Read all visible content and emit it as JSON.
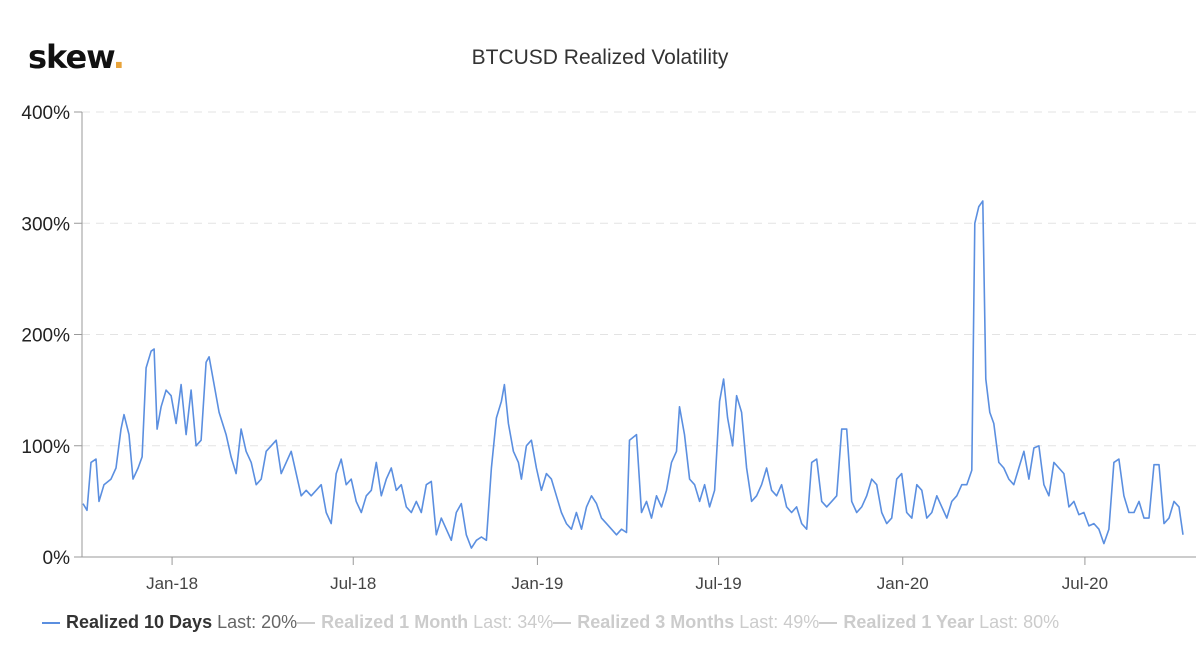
{
  "logo": {
    "text": "skew",
    "dot": "."
  },
  "chart_data": {
    "type": "line",
    "title": "BTCUSD Realized Volatility",
    "xlabel": "",
    "ylabel": "",
    "ylim": [
      0,
      400
    ],
    "xlim": [
      "2017-10-03",
      "2020-10-10"
    ],
    "y_ticks": [
      {
        "value": 0,
        "label": "0%"
      },
      {
        "value": 100,
        "label": "100%"
      },
      {
        "value": 200,
        "label": "200%"
      },
      {
        "value": 300,
        "label": "300%"
      },
      {
        "value": 400,
        "label": "400%"
      }
    ],
    "x_ticks": [
      {
        "date": "2018-01-01",
        "label": "Jan-18"
      },
      {
        "date": "2018-07-01",
        "label": "Jul-18"
      },
      {
        "date": "2019-01-01",
        "label": "Jan-19"
      },
      {
        "date": "2019-07-01",
        "label": "Jul-19"
      },
      {
        "date": "2020-01-01",
        "label": "Jan-20"
      },
      {
        "date": "2020-07-01",
        "label": "Jul-20"
      }
    ],
    "grid": "horizontal dashed",
    "legend_position": "bottom",
    "series": [
      {
        "name": "Realized 10 Days",
        "last": "Last: 20%",
        "color": "#5b8fe0",
        "visible": true,
        "points": [
          [
            "2017-10-04",
            48
          ],
          [
            "2017-10-08",
            42
          ],
          [
            "2017-10-12",
            85
          ],
          [
            "2017-10-17",
            88
          ],
          [
            "2017-10-20",
            50
          ],
          [
            "2017-10-25",
            65
          ],
          [
            "2017-11-01",
            70
          ],
          [
            "2017-11-06",
            80
          ],
          [
            "2017-11-11",
            115
          ],
          [
            "2017-11-14",
            128
          ],
          [
            "2017-11-19",
            110
          ],
          [
            "2017-11-23",
            70
          ],
          [
            "2017-11-28",
            80
          ],
          [
            "2017-12-02",
            90
          ],
          [
            "2017-12-06",
            170
          ],
          [
            "2017-12-11",
            185
          ],
          [
            "2017-12-14",
            187
          ],
          [
            "2017-12-17",
            115
          ],
          [
            "2017-12-21",
            135
          ],
          [
            "2017-12-26",
            150
          ],
          [
            "2017-12-31",
            145
          ],
          [
            "2018-01-05",
            120
          ],
          [
            "2018-01-10",
            155
          ],
          [
            "2018-01-15",
            110
          ],
          [
            "2018-01-20",
            150
          ],
          [
            "2018-01-25",
            100
          ],
          [
            "2018-01-30",
            105
          ],
          [
            "2018-02-04",
            175
          ],
          [
            "2018-02-07",
            180
          ],
          [
            "2018-02-11",
            160
          ],
          [
            "2018-02-17",
            130
          ],
          [
            "2018-02-24",
            110
          ],
          [
            "2018-03-01",
            90
          ],
          [
            "2018-03-06",
            75
          ],
          [
            "2018-03-11",
            115
          ],
          [
            "2018-03-16",
            95
          ],
          [
            "2018-03-21",
            85
          ],
          [
            "2018-03-26",
            65
          ],
          [
            "2018-03-31",
            70
          ],
          [
            "2018-04-05",
            95
          ],
          [
            "2018-04-10",
            100
          ],
          [
            "2018-04-15",
            105
          ],
          [
            "2018-04-20",
            75
          ],
          [
            "2018-04-25",
            85
          ],
          [
            "2018-04-30",
            95
          ],
          [
            "2018-05-05",
            75
          ],
          [
            "2018-05-10",
            55
          ],
          [
            "2018-05-15",
            60
          ],
          [
            "2018-05-20",
            55
          ],
          [
            "2018-05-25",
            60
          ],
          [
            "2018-05-30",
            65
          ],
          [
            "2018-06-04",
            40
          ],
          [
            "2018-06-09",
            30
          ],
          [
            "2018-06-14",
            75
          ],
          [
            "2018-06-19",
            88
          ],
          [
            "2018-06-24",
            65
          ],
          [
            "2018-06-29",
            70
          ],
          [
            "2018-07-04",
            50
          ],
          [
            "2018-07-09",
            40
          ],
          [
            "2018-07-14",
            55
          ],
          [
            "2018-07-19",
            60
          ],
          [
            "2018-07-24",
            85
          ],
          [
            "2018-07-29",
            55
          ],
          [
            "2018-08-03",
            70
          ],
          [
            "2018-08-08",
            80
          ],
          [
            "2018-08-13",
            60
          ],
          [
            "2018-08-18",
            65
          ],
          [
            "2018-08-23",
            45
          ],
          [
            "2018-08-28",
            40
          ],
          [
            "2018-09-02",
            50
          ],
          [
            "2018-09-07",
            40
          ],
          [
            "2018-09-12",
            65
          ],
          [
            "2018-09-17",
            68
          ],
          [
            "2018-09-22",
            20
          ],
          [
            "2018-09-27",
            35
          ],
          [
            "2018-10-02",
            25
          ],
          [
            "2018-10-07",
            15
          ],
          [
            "2018-10-12",
            40
          ],
          [
            "2018-10-17",
            48
          ],
          [
            "2018-10-22",
            20
          ],
          [
            "2018-10-27",
            8
          ],
          [
            "2018-11-01",
            15
          ],
          [
            "2018-11-06",
            18
          ],
          [
            "2018-11-11",
            15
          ],
          [
            "2018-11-16",
            80
          ],
          [
            "2018-11-21",
            125
          ],
          [
            "2018-11-26",
            140
          ],
          [
            "2018-11-29",
            155
          ],
          [
            "2018-12-03",
            120
          ],
          [
            "2018-12-08",
            95
          ],
          [
            "2018-12-13",
            85
          ],
          [
            "2018-12-16",
            70
          ],
          [
            "2018-12-21",
            100
          ],
          [
            "2018-12-26",
            105
          ],
          [
            "2018-12-31",
            80
          ],
          [
            "2019-01-05",
            60
          ],
          [
            "2019-01-10",
            75
          ],
          [
            "2019-01-15",
            70
          ],
          [
            "2019-01-20",
            55
          ],
          [
            "2019-01-25",
            40
          ],
          [
            "2019-01-30",
            30
          ],
          [
            "2019-02-04",
            25
          ],
          [
            "2019-02-09",
            40
          ],
          [
            "2019-02-14",
            25
          ],
          [
            "2019-02-19",
            45
          ],
          [
            "2019-02-24",
            55
          ],
          [
            "2019-03-01",
            48
          ],
          [
            "2019-03-06",
            35
          ],
          [
            "2019-03-11",
            30
          ],
          [
            "2019-03-16",
            25
          ],
          [
            "2019-03-21",
            20
          ],
          [
            "2019-03-26",
            25
          ],
          [
            "2019-03-31",
            22
          ],
          [
            "2019-04-03",
            105
          ],
          [
            "2019-04-10",
            110
          ],
          [
            "2019-04-15",
            40
          ],
          [
            "2019-04-20",
            50
          ],
          [
            "2019-04-25",
            35
          ],
          [
            "2019-04-30",
            55
          ],
          [
            "2019-05-05",
            45
          ],
          [
            "2019-05-10",
            60
          ],
          [
            "2019-05-15",
            85
          ],
          [
            "2019-05-20",
            95
          ],
          [
            "2019-05-23",
            135
          ],
          [
            "2019-05-28",
            110
          ],
          [
            "2019-06-02",
            70
          ],
          [
            "2019-06-07",
            65
          ],
          [
            "2019-06-12",
            50
          ],
          [
            "2019-06-17",
            65
          ],
          [
            "2019-06-22",
            45
          ],
          [
            "2019-06-27",
            60
          ],
          [
            "2019-07-02",
            140
          ],
          [
            "2019-07-06",
            160
          ],
          [
            "2019-07-10",
            125
          ],
          [
            "2019-07-15",
            100
          ],
          [
            "2019-07-19",
            145
          ],
          [
            "2019-07-24",
            130
          ],
          [
            "2019-07-29",
            80
          ],
          [
            "2019-08-03",
            50
          ],
          [
            "2019-08-08",
            55
          ],
          [
            "2019-08-13",
            65
          ],
          [
            "2019-08-18",
            80
          ],
          [
            "2019-08-23",
            60
          ],
          [
            "2019-08-28",
            55
          ],
          [
            "2019-09-02",
            65
          ],
          [
            "2019-09-07",
            45
          ],
          [
            "2019-09-12",
            40
          ],
          [
            "2019-09-17",
            45
          ],
          [
            "2019-09-22",
            30
          ],
          [
            "2019-09-27",
            25
          ],
          [
            "2019-10-02",
            85
          ],
          [
            "2019-10-07",
            88
          ],
          [
            "2019-10-12",
            50
          ],
          [
            "2019-10-17",
            45
          ],
          [
            "2019-10-22",
            50
          ],
          [
            "2019-10-27",
            55
          ],
          [
            "2019-11-01",
            115
          ],
          [
            "2019-11-06",
            115
          ],
          [
            "2019-11-11",
            50
          ],
          [
            "2019-11-16",
            40
          ],
          [
            "2019-11-21",
            45
          ],
          [
            "2019-11-26",
            55
          ],
          [
            "2019-12-01",
            70
          ],
          [
            "2019-12-06",
            65
          ],
          [
            "2019-12-11",
            40
          ],
          [
            "2019-12-16",
            30
          ],
          [
            "2019-12-21",
            35
          ],
          [
            "2019-12-26",
            70
          ],
          [
            "2019-12-31",
            75
          ],
          [
            "2020-01-05",
            40
          ],
          [
            "2020-01-10",
            35
          ],
          [
            "2020-01-15",
            65
          ],
          [
            "2020-01-20",
            60
          ],
          [
            "2020-01-25",
            35
          ],
          [
            "2020-01-30",
            40
          ],
          [
            "2020-02-04",
            55
          ],
          [
            "2020-02-09",
            45
          ],
          [
            "2020-02-14",
            35
          ],
          [
            "2020-02-19",
            50
          ],
          [
            "2020-02-24",
            55
          ],
          [
            "2020-02-29",
            65
          ],
          [
            "2020-03-05",
            65
          ],
          [
            "2020-03-10",
            78
          ],
          [
            "2020-03-13",
            300
          ],
          [
            "2020-03-17",
            315
          ],
          [
            "2020-03-21",
            320
          ],
          [
            "2020-03-24",
            160
          ],
          [
            "2020-03-28",
            130
          ],
          [
            "2020-04-01",
            120
          ],
          [
            "2020-04-06",
            85
          ],
          [
            "2020-04-11",
            80
          ],
          [
            "2020-04-16",
            70
          ],
          [
            "2020-04-21",
            65
          ],
          [
            "2020-04-26",
            80
          ],
          [
            "2020-05-01",
            95
          ],
          [
            "2020-05-06",
            70
          ],
          [
            "2020-05-11",
            98
          ],
          [
            "2020-05-16",
            100
          ],
          [
            "2020-05-21",
            65
          ],
          [
            "2020-05-26",
            55
          ],
          [
            "2020-05-31",
            85
          ],
          [
            "2020-06-05",
            80
          ],
          [
            "2020-06-10",
            75
          ],
          [
            "2020-06-15",
            45
          ],
          [
            "2020-06-20",
            50
          ],
          [
            "2020-06-25",
            38
          ],
          [
            "2020-06-30",
            40
          ],
          [
            "2020-07-05",
            28
          ],
          [
            "2020-07-10",
            30
          ],
          [
            "2020-07-15",
            25
          ],
          [
            "2020-07-20",
            12
          ],
          [
            "2020-07-25",
            25
          ],
          [
            "2020-07-30",
            85
          ],
          [
            "2020-08-04",
            88
          ],
          [
            "2020-08-09",
            55
          ],
          [
            "2020-08-14",
            40
          ],
          [
            "2020-08-19",
            40
          ],
          [
            "2020-08-24",
            50
          ],
          [
            "2020-08-29",
            35
          ],
          [
            "2020-09-03",
            35
          ],
          [
            "2020-09-08",
            83
          ],
          [
            "2020-09-13",
            83
          ],
          [
            "2020-09-18",
            30
          ],
          [
            "2020-09-23",
            35
          ],
          [
            "2020-09-28",
            50
          ],
          [
            "2020-10-03",
            45
          ],
          [
            "2020-10-07",
            20
          ]
        ]
      },
      {
        "name": "Realized 1 Month",
        "last": "Last: 34%",
        "color": "#cccccc",
        "visible": false,
        "points": []
      },
      {
        "name": "Realized 3 Months",
        "last": "Last: 49%",
        "color": "#cccccc",
        "visible": false,
        "points": []
      },
      {
        "name": "Realized 1 Year",
        "last": "Last: 80%",
        "color": "#cccccc",
        "visible": false,
        "points": []
      }
    ]
  }
}
